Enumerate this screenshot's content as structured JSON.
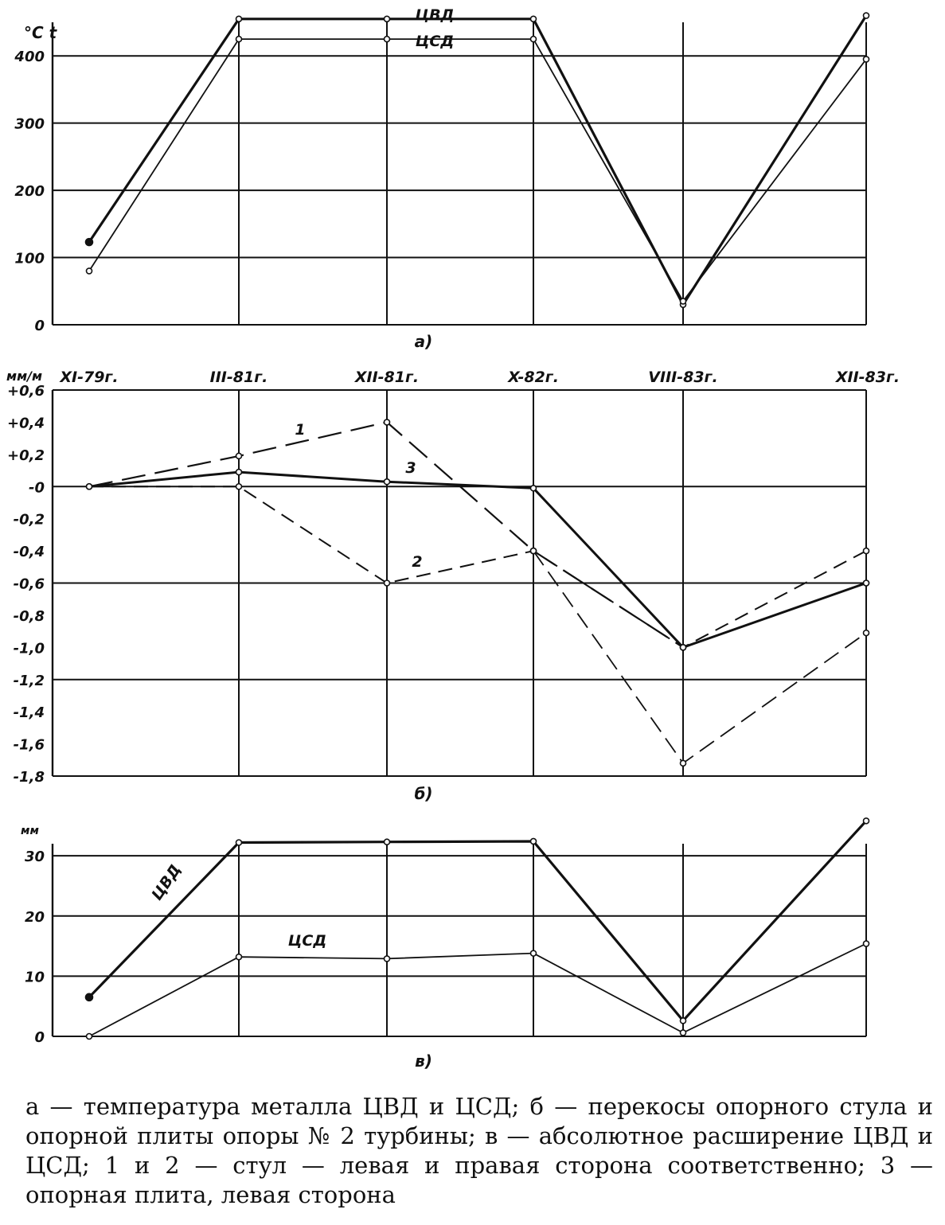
{
  "chart_data": [
    {
      "type": "line",
      "panel_label": "а)",
      "ylabel": "°С t",
      "ylim": [
        0,
        450
      ],
      "yticks": [
        "0",
        "100",
        "200",
        "300",
        "400"
      ],
      "grid": true,
      "x": [
        0,
        1,
        2,
        3,
        4,
        5
      ],
      "series": [
        {
          "name": "ЦВД",
          "values": [
            123,
            455,
            455,
            455,
            30,
            460
          ]
        },
        {
          "name": "ЦСД",
          "values": [
            80,
            425,
            425,
            425,
            35,
            395
          ]
        }
      ]
    },
    {
      "type": "line",
      "panel_label": "б)",
      "ylabel": "мм/м",
      "ylim": [
        -1.8,
        0.6
      ],
      "yticks": [
        "+0,6",
        "+0,4",
        "+0,2",
        "-0",
        "-0,2",
        "-0,4",
        "-0,6",
        "-0,8",
        "-1,0",
        "-1,2",
        "-1,4",
        "-1,6",
        "-1,8"
      ],
      "categories": [
        "XI-79г.",
        "III-81г.",
        "XII-81г.",
        "X-82г.",
        "VIII-83г.",
        "XII-83г."
      ],
      "grid": true,
      "series": [
        {
          "name": "1",
          "values": [
            0,
            0.19,
            0.4,
            -0.4,
            -1.0,
            -0.6
          ]
        },
        {
          "name": "2",
          "values": [
            0,
            0,
            -0.6,
            -0.4,
            -1.0,
            -0.4
          ]
        },
        {
          "name": "3",
          "values": [
            0,
            0.09,
            0.03,
            -0.01,
            -1.0,
            -0.6
          ]
        },
        {
          "name": "",
          "values": [
            null,
            null,
            null,
            -0.4,
            -1.72,
            -0.91
          ]
        }
      ]
    },
    {
      "type": "line",
      "panel_label": "в)",
      "ylabel": "мм",
      "ylim": [
        0,
        32
      ],
      "yticks": [
        "0",
        "10",
        "20",
        "30"
      ],
      "grid": true,
      "x": [
        0,
        1,
        2,
        3,
        4,
        5
      ],
      "series": [
        {
          "name": "ЦВД",
          "values": [
            6.5,
            32.2,
            32.3,
            32.4,
            2.6,
            35.8
          ]
        },
        {
          "name": "ЦСД",
          "values": [
            0,
            13.2,
            12.9,
            13.8,
            0.6,
            15.4
          ]
        }
      ]
    }
  ],
  "caption": "а — температура металла ЦВД и ЦСД; б — перекосы опорного стула и опорной плиты опоры № 2 турбины; в — абсолютное расширение ЦВД и ЦСД; 1 и 2 — стул — левая и правая сторона соответственно; 3 — опорная плита, левая сторона",
  "colors": {
    "ink": "#111111",
    "background": "#ffffff"
  }
}
